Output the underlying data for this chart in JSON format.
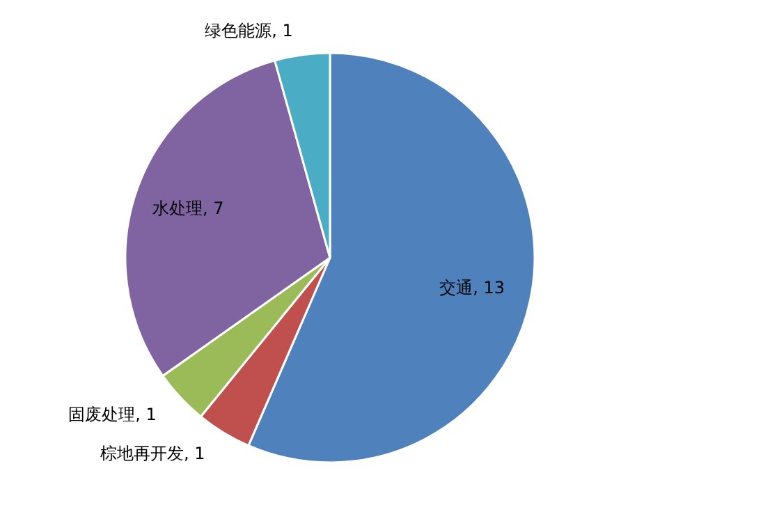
{
  "chart_data": {
    "type": "pie",
    "categories": [
      "交通",
      "棕地再开发",
      "固废处理",
      "水处理",
      "绿色能源"
    ],
    "values": [
      13,
      1,
      1,
      7,
      1
    ],
    "value_labels": [
      ", 13",
      ", 1",
      ", 1",
      ", 7",
      ", 1"
    ],
    "colors": [
      "#4f81bd",
      "#c0504d",
      "#9bbb59",
      "#8064a2",
      "#4bacc6"
    ]
  }
}
